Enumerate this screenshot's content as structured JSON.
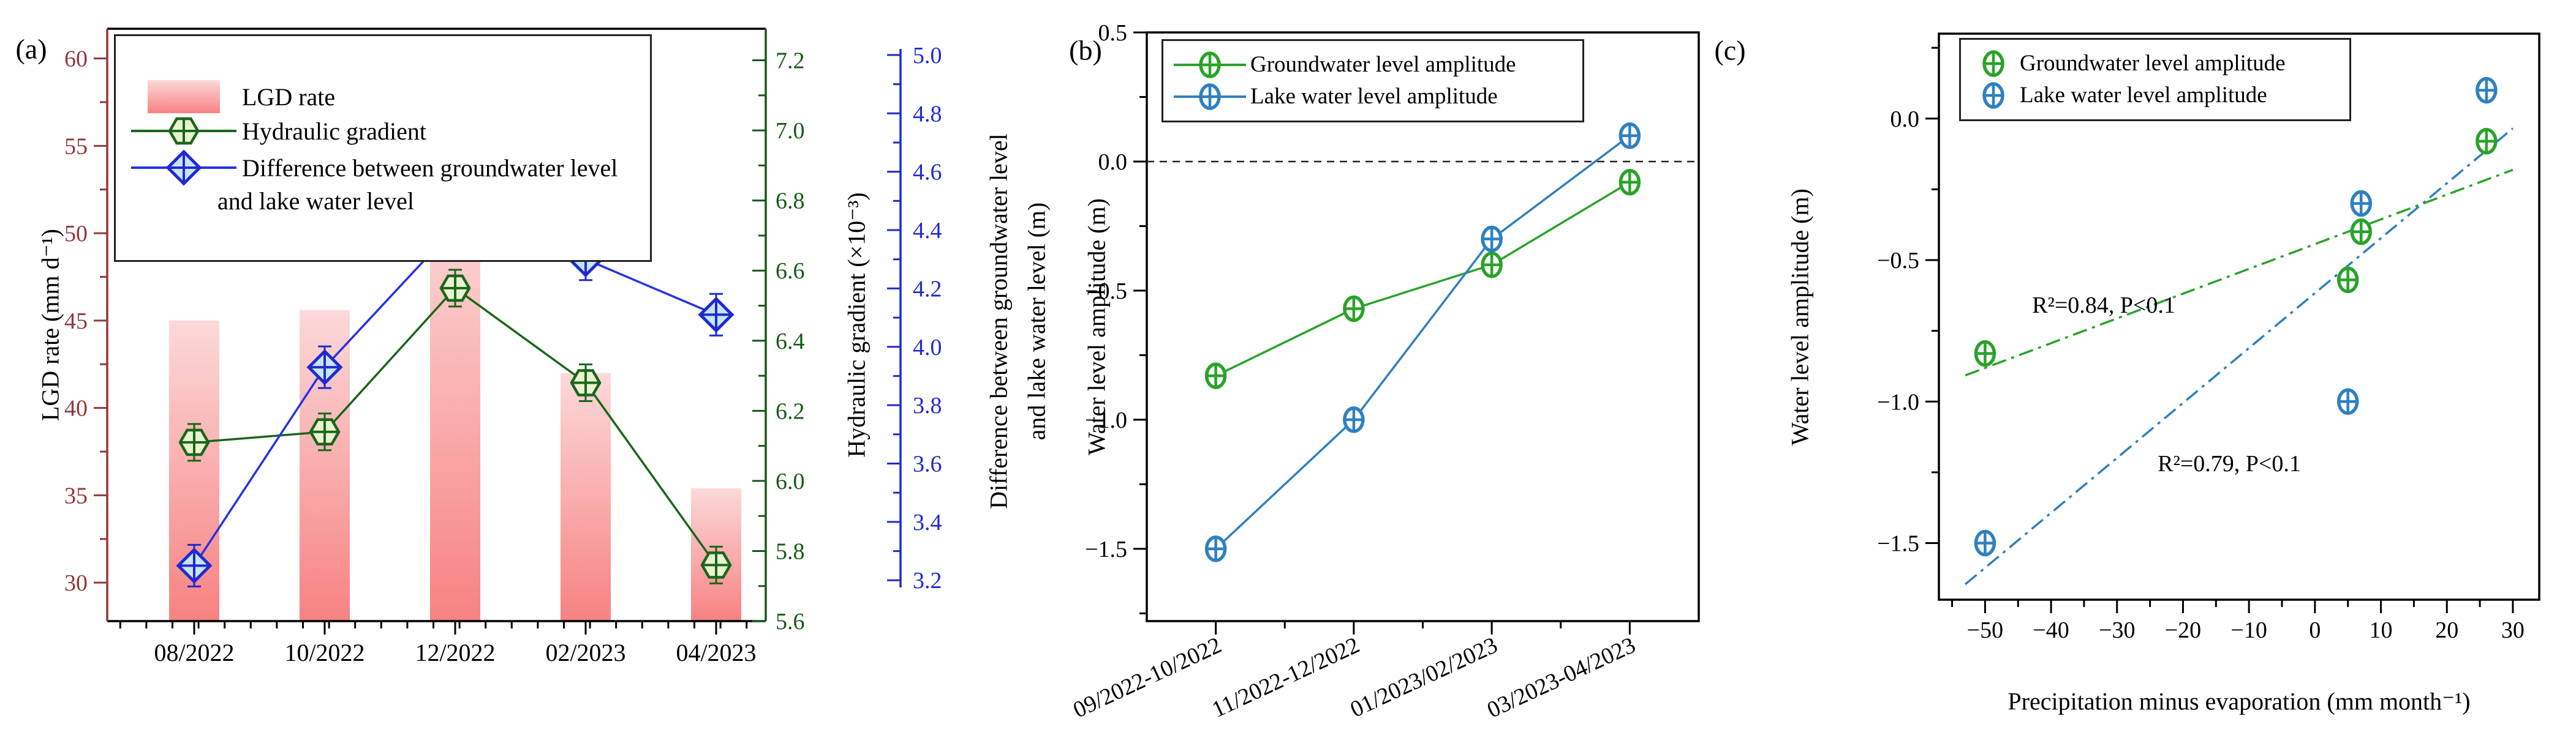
{
  "page": {
    "background": "#ffffff",
    "figure_type": "three-panel scientific figure"
  },
  "chart_data": [
    {
      "id": "a",
      "type": "bar",
      "panel_label": "(a)",
      "categories": [
        "08/2022",
        "10/2022",
        "12/2022",
        "02/2023",
        "04/2023"
      ],
      "series": [
        {
          "name": "LGD rate",
          "type": "bar",
          "axis": "left",
          "bar_color_top": "#fcd9d9",
          "bar_color_bottom": "#f78282",
          "values": [
            45.0,
            45.6,
            51.7,
            42.0,
            35.4
          ]
        },
        {
          "name": "Hydraulic gradient",
          "type": "line",
          "axis": "right_green",
          "line_color": "#1a661a",
          "marker": "hexagon-cross",
          "marker_fill": "#e9f3cf",
          "values": [
            6.11,
            6.14,
            6.55,
            6.28,
            5.76
          ]
        },
        {
          "name": "Difference between groundwater level and lake water level",
          "type": "line",
          "axis": "right_blue",
          "line_color": "#2433e8",
          "marker": "diamond-cross",
          "marker_fill": "#c6e5fa",
          "values": [
            3.25,
            3.93,
            4.41,
            4.3,
            4.11
          ]
        }
      ],
      "axes": {
        "left": {
          "label": "LGD rate (mm d⁻¹)",
          "color": "#8f3a3a",
          "range": [
            27.8,
            61.7
          ],
          "major_ticks": [
            30,
            35,
            40,
            45,
            50,
            55,
            60
          ],
          "minor_step": 2.5
        },
        "right_green": {
          "label": "Hydraulic gradient (×10⁻³)",
          "color": "#165916",
          "range": [
            5.6,
            7.29
          ],
          "major_ticks": [
            5.6,
            5.8,
            6.0,
            6.2,
            6.4,
            6.6,
            6.8,
            7.0,
            7.2
          ],
          "minor_step": 0.1
        },
        "right_blue": {
          "label_line1": "Difference between groundwater level",
          "label_line2": "and lake water level (m)",
          "color": "#1f2ad2",
          "range": [
            3.06,
            5.09
          ],
          "major_ticks": [
            3.2,
            3.4,
            3.6,
            3.8,
            4.0,
            4.2,
            4.4,
            4.6,
            4.8,
            5.0
          ],
          "minor_step": 0.1
        }
      },
      "legend_labels": [
        "LGD rate",
        "Hydraulic gradient",
        "Difference between groundwater level",
        "and lake water level"
      ]
    },
    {
      "id": "b",
      "type": "line",
      "panel_label": "(b)",
      "categories": [
        "09/2022-10/2022",
        "11/2022-12/2022",
        "01/2023/02/2023",
        "03/2023-04/2023"
      ],
      "series": [
        {
          "name": "Groundwater level amplitude",
          "color": "#29a329",
          "marker": "ellipse-cross",
          "values": [
            -0.83,
            -0.57,
            -0.4,
            -0.08
          ]
        },
        {
          "name": "Lake water level amplitude",
          "color": "#2f80c0",
          "marker": "ellipse-cross",
          "values": [
            -1.5,
            -1.0,
            -0.3,
            0.1
          ]
        }
      ],
      "axes": {
        "y": {
          "label": "Water level amplitude (m)",
          "range": [
            -1.78,
            0.5
          ],
          "major_ticks": [
            0.5,
            0.0,
            -0.5,
            -1.0,
            -1.5
          ],
          "minor_step": 0.25
        }
      },
      "zero_line": {
        "y": 0.0,
        "style": "dashed"
      },
      "legend_labels": [
        "Groundwater level amplitude",
        "Lake water level amplitude"
      ]
    },
    {
      "id": "c",
      "type": "scatter",
      "panel_label": "(c)",
      "x": [
        -50,
        5,
        7,
        26
      ],
      "series": [
        {
          "name": "Groundwater level amplitude",
          "color": "#29a329",
          "marker": "ellipse-cross",
          "values": [
            -0.83,
            -0.57,
            -0.4,
            -0.08
          ]
        },
        {
          "name": "Lake water level amplitude",
          "color": "#2f80c0",
          "marker": "ellipse-cross",
          "values": [
            -1.5,
            -1.0,
            -0.3,
            0.1
          ]
        }
      ],
      "trend_lines": [
        {
          "series": "Groundwater level amplitude",
          "color": "#29a329",
          "style": "dash-dot",
          "slope": 0.00875,
          "intercept": -0.4437,
          "x_start": -53,
          "x_end": 30
        },
        {
          "series": "Lake water level amplitude",
          "color": "#2f80c0",
          "style": "dash-dot",
          "slope": 0.01941,
          "intercept": -0.6168,
          "x_start": -53,
          "x_end": 30
        }
      ],
      "annotations": [
        {
          "text": "R²=0.84, P<0.1",
          "x": -32,
          "y": -0.66
        },
        {
          "text": "R²=0.79, P<0.1",
          "x": -13,
          "y": -1.22
        }
      ],
      "axes": {
        "x": {
          "label": "Precipitation minus evaporation (mm month⁻¹)",
          "range": [
            -57,
            34
          ],
          "major_ticks": [
            -50,
            -40,
            -30,
            -20,
            -10,
            0,
            10,
            20,
            30
          ],
          "minor_step": 5
        },
        "y": {
          "label": "Water level amplitude (m)",
          "range": [
            -1.7,
            0.3
          ],
          "major_ticks": [
            0.0,
            -0.5,
            -1.0,
            -1.5
          ],
          "minor_step": 0.25
        }
      },
      "legend_labels": [
        "Groundwater level amplitude",
        "Lake water level amplitude"
      ]
    }
  ]
}
